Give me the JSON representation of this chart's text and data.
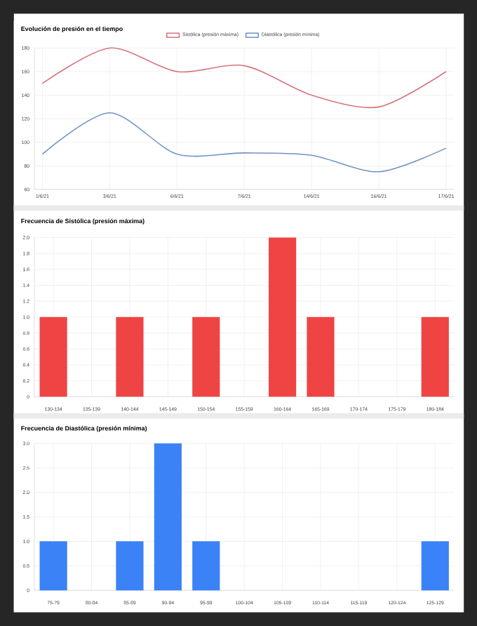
{
  "chart_data": [
    {
      "type": "line",
      "title": "Evolución de presión en el tiempo",
      "categories": [
        "1/6/21",
        "3/6/21",
        "6/6/21",
        "7/6/21",
        "14/6/21",
        "16/6/21",
        "17/6/21"
      ],
      "series": [
        {
          "name": "Sistólica (presión máxima)",
          "color": "#d9737d",
          "values": [
            150,
            180,
            160,
            165,
            140,
            130,
            160
          ]
        },
        {
          "name": "Diastólica (presión mínima)",
          "color": "#6f93c4",
          "values": [
            90,
            125,
            90,
            91,
            89,
            75,
            95
          ]
        }
      ],
      "ylim": [
        60,
        180
      ],
      "yticks": [
        60,
        80,
        100,
        120,
        140,
        160,
        180
      ],
      "grid": true,
      "legend": "top"
    },
    {
      "type": "bar",
      "title": "Frecuencia de Sistólica (presión máxima)",
      "categories": [
        "130-134",
        "135-139",
        "140-144",
        "145-149",
        "150-154",
        "155-159",
        "160-164",
        "165-169",
        "170-174",
        "175-179",
        "180-184"
      ],
      "values": [
        1,
        0,
        1,
        0,
        1,
        0,
        2,
        1,
        0,
        0,
        1
      ],
      "color": "#ef4444",
      "ylim": [
        0,
        2
      ],
      "yticks": [
        0,
        0.2,
        0.4,
        0.6,
        0.8,
        {
          "value": 1,
          "label": "1.0"
        },
        1.2,
        1.4,
        1.6,
        1.8,
        {
          "value": 2,
          "label": "2.0"
        }
      ],
      "grid": true
    },
    {
      "type": "bar",
      "title": "Frecuencia de Diastólica (presión mínima)",
      "categories": [
        "75-79",
        "80-84",
        "85-89",
        "90-94",
        "95-99",
        "100-104",
        "105-109",
        "110-114",
        "115-119",
        "120-124",
        "125-129"
      ],
      "values": [
        1,
        0,
        1,
        3,
        1,
        0,
        0,
        0,
        0,
        0,
        1
      ],
      "color": "#3b82f6",
      "ylim": [
        0,
        3
      ],
      "yticks": [
        0,
        0.5,
        {
          "value": 1,
          "label": "1.0"
        },
        1.5,
        {
          "value": 2,
          "label": "2.0"
        },
        2.5,
        {
          "value": 3,
          "label": "3.0"
        }
      ],
      "grid": true
    }
  ]
}
